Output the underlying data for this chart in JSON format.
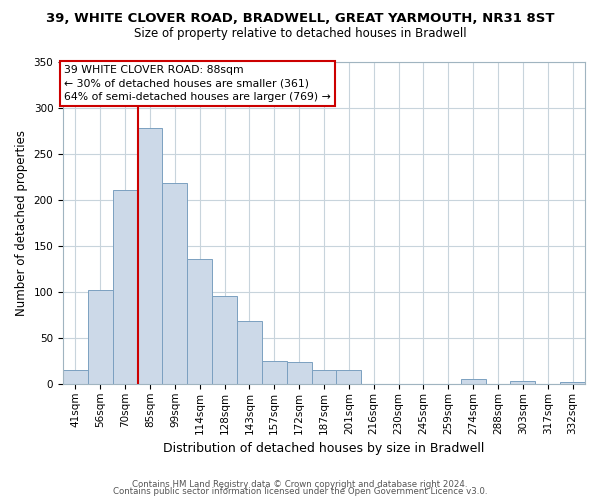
{
  "title": "39, WHITE CLOVER ROAD, BRADWELL, GREAT YARMOUTH, NR31 8ST",
  "subtitle": "Size of property relative to detached houses in Bradwell",
  "xlabel": "Distribution of detached houses by size in Bradwell",
  "ylabel": "Number of detached properties",
  "bar_labels": [
    "41sqm",
    "56sqm",
    "70sqm",
    "85sqm",
    "99sqm",
    "114sqm",
    "128sqm",
    "143sqm",
    "157sqm",
    "172sqm",
    "187sqm",
    "201sqm",
    "216sqm",
    "230sqm",
    "245sqm",
    "259sqm",
    "274sqm",
    "288sqm",
    "303sqm",
    "317sqm",
    "332sqm"
  ],
  "bar_values": [
    15,
    102,
    211,
    278,
    218,
    136,
    95,
    68,
    25,
    24,
    15,
    15,
    0,
    0,
    0,
    0,
    5,
    0,
    3,
    0,
    2
  ],
  "bar_color": "#ccd9e8",
  "bar_edge_color": "#7ba0c0",
  "vline_x_index": 3,
  "vline_color": "#cc0000",
  "annotation_text": "39 WHITE CLOVER ROAD: 88sqm\n← 30% of detached houses are smaller (361)\n64% of semi-detached houses are larger (769) →",
  "annotation_box_color": "#ffffff",
  "annotation_box_edge": "#cc0000",
  "ylim": [
    0,
    350
  ],
  "yticks": [
    0,
    50,
    100,
    150,
    200,
    250,
    300,
    350
  ],
  "footer_line1": "Contains HM Land Registry data © Crown copyright and database right 2024.",
  "footer_line2": "Contains public sector information licensed under the Open Government Licence v3.0.",
  "bg_color": "#ffffff",
  "grid_color": "#c8d4dc",
  "title_fontsize": 9.5,
  "subtitle_fontsize": 8.5,
  "ylabel_fontsize": 8.5,
  "xlabel_fontsize": 9.0,
  "tick_fontsize": 7.5,
  "footer_fontsize": 6.2
}
